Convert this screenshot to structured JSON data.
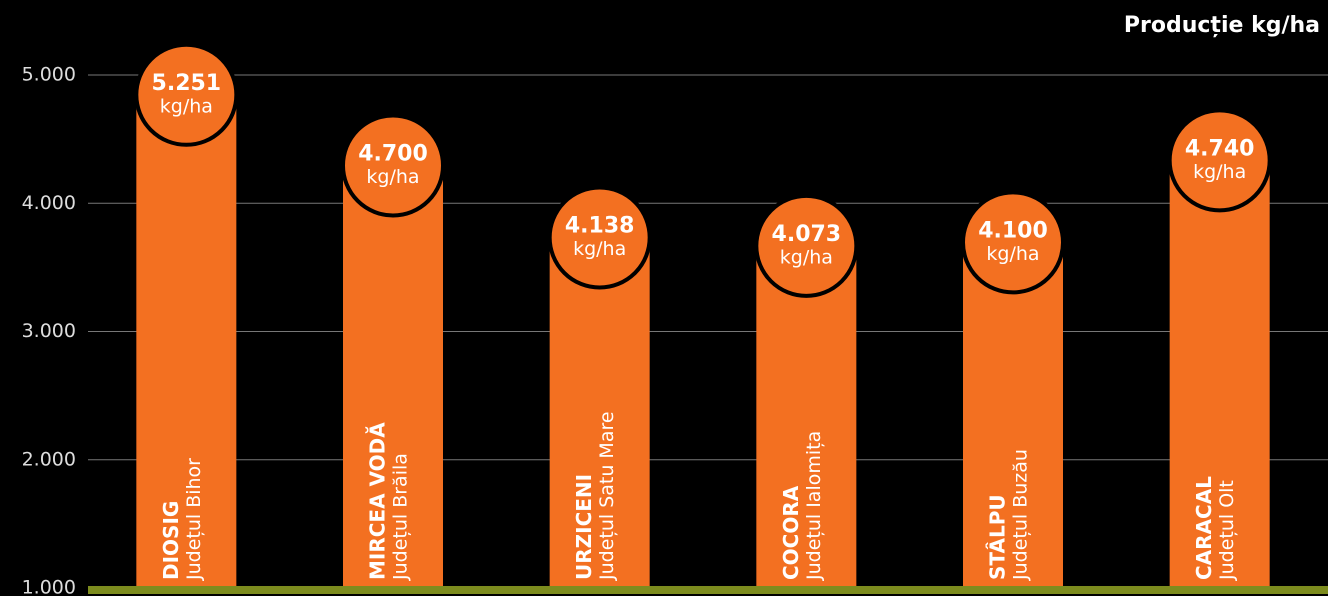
{
  "chart_data": {
    "type": "bar",
    "title": "Producție kg/ha",
    "categories": [
      "DIOSIG",
      "MIRCEA VODĂ",
      "URZICENI",
      "COCORA",
      "STÂLPU",
      "CARACAL"
    ],
    "subcategories": [
      "Județul Bihor",
      "Județul Brăila",
      "Județul Satu Mare",
      "Județul Ialomița",
      "Județul Buzău",
      "Județul Olt"
    ],
    "values": [
      5251,
      4700,
      4138,
      4073,
      4100,
      4740
    ],
    "value_labels": [
      "5.251",
      "4.700",
      "4.138",
      "4.073",
      "4.100",
      "4.740"
    ],
    "value_unit": "kg/ha",
    "color": "#f37021",
    "ylim": [
      1000,
      5000
    ],
    "yticks": [
      {
        "value": 1000,
        "label": "1.000"
      },
      {
        "value": 2000,
        "label": "2.000"
      },
      {
        "value": 3000,
        "label": "3.000"
      },
      {
        "value": 4000,
        "label": "4.000"
      },
      {
        "value": 5000,
        "label": "5.000"
      }
    ],
    "grid": true
  }
}
